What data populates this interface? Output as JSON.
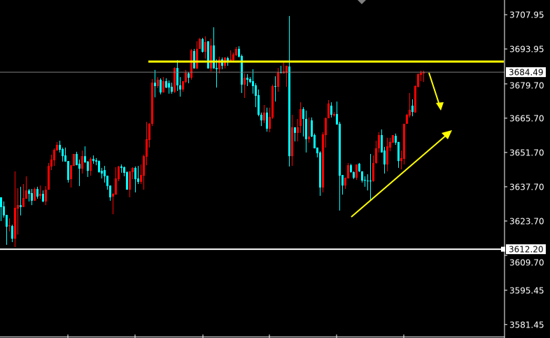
{
  "chart_data": {
    "type": "candlestick",
    "title": "",
    "xlabel": "",
    "ylabel": "",
    "ylim": [
      3580.0,
      3714.0
    ],
    "y_ticks": [
      "3707.95",
      "3693.95",
      "3679.70",
      "3665.70",
      "3651.70",
      "3637.70",
      "3623.70",
      "3609.70",
      "3595.45",
      "3581.45"
    ],
    "grid": false,
    "up_color": "#ff0000",
    "down_color": "#00ffff",
    "background": "#000000",
    "ohlc_fields": [
      "open",
      "high",
      "low",
      "close"
    ],
    "candles": [
      [
        3633.4,
        3633.4,
        3623.7,
        3629.4
      ],
      [
        3629.7,
        3631.7,
        3625.1,
        3626.0
      ],
      [
        3626.2,
        3626.2,
        3614.0,
        3621.4
      ],
      [
        3621.6,
        3624.8,
        3619.4,
        3621.9
      ],
      [
        3621.7,
        3622.2,
        3615.1,
        3616.5
      ],
      [
        3616.5,
        3644.0,
        3613.1,
        3629.1
      ],
      [
        3628.8,
        3637.1,
        3618.2,
        3630.2
      ],
      [
        3630.2,
        3637.7,
        3626.0,
        3629.4
      ],
      [
        3629.4,
        3638.8,
        3629.4,
        3633.1
      ],
      [
        3632.8,
        3642.0,
        3632.8,
        3636.2
      ],
      [
        3636.2,
        3636.8,
        3631.7,
        3634.8
      ],
      [
        3635.1,
        3636.8,
        3630.2,
        3632.0
      ],
      [
        3632.0,
        3637.4,
        3632.0,
        3636.8
      ],
      [
        3636.8,
        3637.7,
        3632.8,
        3633.7
      ],
      [
        3634.0,
        3638.2,
        3632.8,
        3634.8
      ],
      [
        3634.8,
        3636.2,
        3631.4,
        3631.7
      ],
      [
        3631.7,
        3638.0,
        3630.2,
        3636.5
      ],
      [
        3636.5,
        3647.4,
        3636.5,
        3646.2
      ],
      [
        3646.0,
        3650.8,
        3644.5,
        3648.8
      ],
      [
        3648.5,
        3653.4,
        3646.2,
        3652.8
      ],
      [
        3652.5,
        3656.0,
        3652.5,
        3654.8
      ],
      [
        3654.8,
        3656.5,
        3651.7,
        3652.8
      ],
      [
        3653.1,
        3653.7,
        3648.0,
        3650.2
      ],
      [
        3650.5,
        3653.7,
        3648.0,
        3648.0
      ],
      [
        3648.2,
        3648.2,
        3639.4,
        3640.5
      ],
      [
        3640.8,
        3646.5,
        3637.4,
        3646.5
      ],
      [
        3646.2,
        3651.1,
        3646.2,
        3651.1
      ],
      [
        3651.1,
        3652.0,
        3646.5,
        3646.5
      ],
      [
        3647.1,
        3648.8,
        3638.0,
        3645.1
      ],
      [
        3645.1,
        3652.5,
        3643.1,
        3650.2
      ],
      [
        3650.2,
        3654.2,
        3647.4,
        3647.7
      ],
      [
        3648.0,
        3648.2,
        3641.7,
        3644.2
      ],
      [
        3644.2,
        3649.7,
        3642.2,
        3649.1
      ],
      [
        3649.1,
        3650.5,
        3647.1,
        3648.2
      ],
      [
        3648.5,
        3649.4,
        3646.5,
        3648.0
      ],
      [
        3648.2,
        3648.5,
        3643.4,
        3643.7
      ],
      [
        3644.2,
        3645.4,
        3641.1,
        3643.1
      ],
      [
        3644.5,
        3646.2,
        3639.4,
        3642.0
      ],
      [
        3642.2,
        3642.2,
        3636.5,
        3638.0
      ],
      [
        3638.2,
        3638.2,
        3632.0,
        3633.4
      ],
      [
        3633.7,
        3635.1,
        3626.5,
        3634.8
      ],
      [
        3634.5,
        3645.7,
        3634.5,
        3641.1
      ],
      [
        3640.8,
        3646.2,
        3640.0,
        3646.0
      ],
      [
        3646.0,
        3646.8,
        3643.4,
        3645.4
      ],
      [
        3645.7,
        3646.0,
        3642.0,
        3643.4
      ],
      [
        3643.7,
        3644.0,
        3636.5,
        3636.5
      ],
      [
        3636.5,
        3644.0,
        3633.4,
        3644.0
      ],
      [
        3643.7,
        3645.7,
        3640.8,
        3645.4
      ],
      [
        3645.4,
        3646.0,
        3635.4,
        3640.8
      ],
      [
        3641.1,
        3646.2,
        3638.8,
        3639.7
      ],
      [
        3639.7,
        3646.8,
        3638.8,
        3642.5
      ],
      [
        3642.2,
        3650.8,
        3636.5,
        3650.2
      ],
      [
        3650.0,
        3664.2,
        3646.5,
        3657.1
      ],
      [
        3656.8,
        3663.7,
        3653.7,
        3663.4
      ],
      [
        3663.4,
        3681.7,
        3662.5,
        3680.2
      ],
      [
        3680.2,
        3685.4,
        3674.2,
        3678.8
      ],
      [
        3678.8,
        3682.5,
        3678.0,
        3681.4
      ],
      [
        3681.4,
        3682.0,
        3675.4,
        3676.2
      ],
      [
        3676.2,
        3682.5,
        3676.2,
        3680.8
      ],
      [
        3680.8,
        3682.0,
        3678.0,
        3678.2
      ],
      [
        3680.0,
        3681.1,
        3675.7,
        3678.2
      ],
      [
        3678.5,
        3680.2,
        3675.7,
        3676.5
      ],
      [
        3676.5,
        3686.5,
        3676.0,
        3686.2
      ],
      [
        3686.2,
        3689.4,
        3676.8,
        3679.1
      ],
      [
        3679.1,
        3682.5,
        3674.5,
        3677.4
      ],
      [
        3677.4,
        3680.8,
        3676.5,
        3680.8
      ],
      [
        3680.5,
        3685.4,
        3680.0,
        3684.2
      ],
      [
        3684.0,
        3684.5,
        3680.0,
        3682.2
      ],
      [
        3682.2,
        3694.0,
        3681.4,
        3693.4
      ],
      [
        3693.1,
        3694.0,
        3686.0,
        3686.0
      ],
      [
        3686.0,
        3697.1,
        3685.7,
        3694.0
      ],
      [
        3694.0,
        3698.5,
        3694.0,
        3698.0
      ],
      [
        3698.0,
        3698.5,
        3692.5,
        3692.8
      ],
      [
        3692.8,
        3699.1,
        3690.0,
        3696.8
      ],
      [
        3697.1,
        3697.1,
        3686.0,
        3686.0
      ],
      [
        3686.0,
        3698.2,
        3684.8,
        3695.4
      ],
      [
        3695.4,
        3702.8,
        3686.0,
        3686.0
      ],
      [
        3686.2,
        3689.7,
        3678.2,
        3685.7
      ],
      [
        3685.7,
        3690.8,
        3684.0,
        3689.7
      ],
      [
        3689.7,
        3690.5,
        3685.7,
        3687.1
      ],
      [
        3687.1,
        3690.5,
        3686.0,
        3690.5
      ],
      [
        3690.2,
        3690.8,
        3687.1,
        3688.8
      ],
      [
        3688.8,
        3693.4,
        3688.8,
        3689.7
      ],
      [
        3689.4,
        3692.5,
        3689.1,
        3691.7
      ],
      [
        3691.4,
        3694.8,
        3691.1,
        3694.0
      ],
      [
        3694.0,
        3695.1,
        3690.5,
        3690.8
      ],
      [
        3691.1,
        3691.7,
        3676.0,
        3679.4
      ],
      [
        3679.4,
        3684.0,
        3674.0,
        3682.2
      ],
      [
        3682.2,
        3683.7,
        3678.8,
        3681.4
      ],
      [
        3681.7,
        3682.5,
        3680.0,
        3680.5
      ],
      [
        3680.8,
        3685.7,
        3675.7,
        3678.8
      ],
      [
        3679.1,
        3680.0,
        3670.2,
        3674.8
      ],
      [
        3675.1,
        3677.4,
        3666.5,
        3667.1
      ],
      [
        3667.1,
        3668.0,
        3662.5,
        3664.8
      ],
      [
        3664.8,
        3671.1,
        3663.7,
        3668.0
      ],
      [
        3668.0,
        3670.0,
        3660.2,
        3661.4
      ],
      [
        3661.4,
        3670.0,
        3660.0,
        3666.2
      ],
      [
        3666.0,
        3679.4,
        3665.4,
        3678.8
      ],
      [
        3678.8,
        3682.8,
        3672.5,
        3678.5
      ],
      [
        3678.5,
        3686.2,
        3676.5,
        3684.5
      ],
      [
        3684.5,
        3687.1,
        3684.0,
        3684.2
      ],
      [
        3684.0,
        3688.5,
        3684.0,
        3684.8
      ],
      [
        3684.2,
        3687.1,
        3678.5,
        3687.1
      ],
      [
        3686.8,
        3707.4,
        3646.0,
        3650.2
      ],
      [
        3650.2,
        3667.1,
        3646.2,
        3662.0
      ],
      [
        3662.0,
        3662.0,
        3656.2,
        3659.7
      ],
      [
        3659.7,
        3665.4,
        3656.2,
        3662.0
      ],
      [
        3662.5,
        3672.2,
        3659.7,
        3669.4
      ],
      [
        3669.4,
        3670.2,
        3658.2,
        3665.4
      ],
      [
        3665.4,
        3668.8,
        3651.7,
        3657.1
      ],
      [
        3657.1,
        3666.0,
        3655.7,
        3658.2
      ],
      [
        3664.8,
        3666.0,
        3658.0,
        3658.2
      ],
      [
        3658.8,
        3659.4,
        3653.4,
        3653.4
      ],
      [
        3653.7,
        3653.7,
        3649.7,
        3651.4
      ],
      [
        3651.7,
        3652.2,
        3634.0,
        3637.4
      ],
      [
        3637.4,
        3660.0,
        3635.4,
        3659.1
      ],
      [
        3658.8,
        3666.0,
        3653.7,
        3665.7
      ],
      [
        3665.7,
        3673.1,
        3665.7,
        3671.7
      ],
      [
        3670.8,
        3672.2,
        3666.0,
        3667.1
      ],
      [
        3666.8,
        3668.2,
        3666.3,
        3667.4
      ],
      [
        3667.4,
        3672.5,
        3663.1,
        3663.1
      ],
      [
        3663.4,
        3664.2,
        3628.0,
        3642.2
      ],
      [
        3642.5,
        3642.5,
        3634.5,
        3638.2
      ],
      [
        3638.2,
        3641.4,
        3636.8,
        3641.4
      ],
      [
        3641.1,
        3647.4,
        3641.1,
        3646.5
      ],
      [
        3646.5,
        3647.1,
        3643.4,
        3643.7
      ],
      [
        3643.7,
        3644.0,
        3640.8,
        3641.4
      ],
      [
        3641.4,
        3646.8,
        3640.5,
        3646.8
      ],
      [
        3647.1,
        3647.4,
        3643.7,
        3644.0
      ],
      [
        3644.0,
        3644.0,
        3639.4,
        3640.2
      ],
      [
        3640.5,
        3642.0,
        3637.7,
        3640.2
      ],
      [
        3640.2,
        3642.8,
        3636.2,
        3640.0
      ],
      [
        3640.2,
        3651.1,
        3632.0,
        3640.0
      ],
      [
        3640.0,
        3650.5,
        3639.7,
        3647.4
      ],
      [
        3647.4,
        3656.5,
        3647.1,
        3653.4
      ],
      [
        3653.4,
        3660.0,
        3651.7,
        3658.8
      ],
      [
        3658.8,
        3661.1,
        3651.7,
        3651.7
      ],
      [
        3652.5,
        3654.0,
        3643.1,
        3646.8
      ],
      [
        3646.8,
        3657.7,
        3644.0,
        3654.2
      ],
      [
        3653.7,
        3657.7,
        3652.2,
        3656.0
      ],
      [
        3655.7,
        3658.8,
        3655.7,
        3658.8
      ],
      [
        3658.5,
        3659.4,
        3654.8,
        3655.7
      ],
      [
        3656.0,
        3656.0,
        3645.4,
        3648.2
      ],
      [
        3648.2,
        3652.5,
        3644.8,
        3649.4
      ],
      [
        3649.1,
        3663.4,
        3646.8,
        3663.4
      ],
      [
        3663.4,
        3667.4,
        3663.4,
        3667.1
      ],
      [
        3666.8,
        3676.0,
        3666.0,
        3669.1
      ],
      [
        3670.8,
        3673.4,
        3666.5,
        3668.2
      ],
      [
        3668.0,
        3679.1,
        3668.0,
        3678.8
      ],
      [
        3678.5,
        3684.0,
        3678.2,
        3683.7
      ],
      [
        3683.4,
        3685.1,
        3680.8,
        3684.2
      ],
      [
        3684.0,
        3685.1,
        3680.5,
        3684.5
      ]
    ],
    "current_price": {
      "label": "3684.49",
      "value": 3684.49,
      "line_color": "#808080"
    },
    "horizontal_line": {
      "label": "3612.20",
      "value": 3612.2,
      "color": "#ffffff"
    },
    "resistance_level": {
      "value": 3688.8,
      "color": "#ffff00"
    },
    "annotation_color": "#ffff00"
  }
}
